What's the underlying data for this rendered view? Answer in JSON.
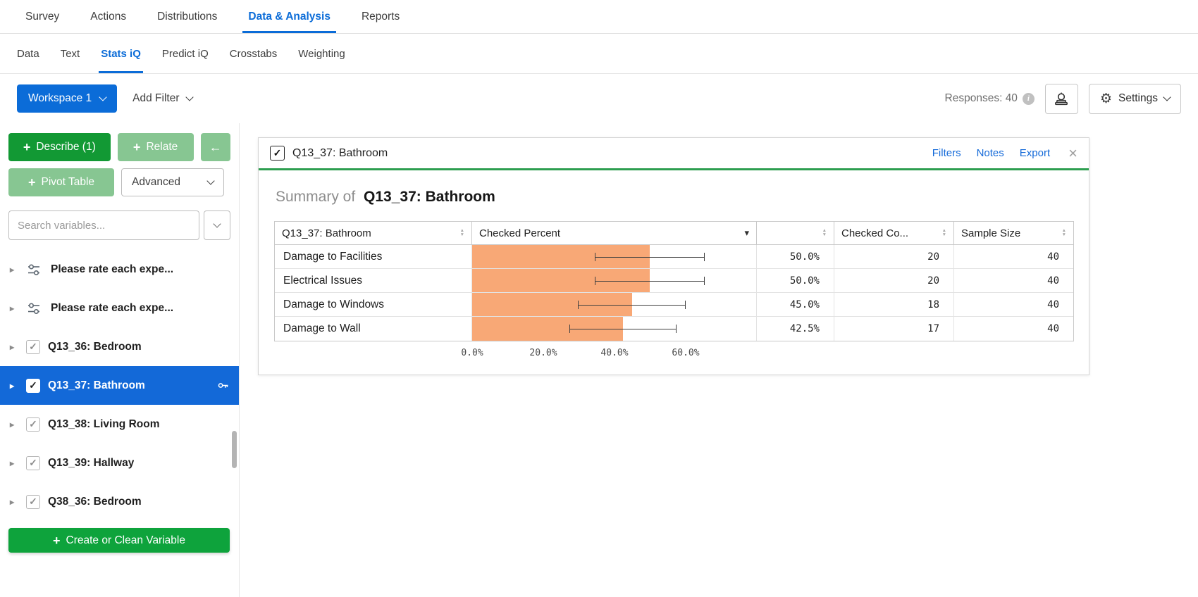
{
  "colors": {
    "accent_blue": "#0b6cd8",
    "selected_blue": "#1369d8",
    "green_dark": "#129934",
    "green_muted": "#87c692",
    "green_create": "#0ea33c",
    "card_accent_green": "#2d9e4f"
  },
  "top_nav": {
    "items": [
      "Survey",
      "Actions",
      "Distributions",
      "Data & Analysis",
      "Reports"
    ],
    "active": "Data & Analysis"
  },
  "sub_nav": {
    "items": [
      "Data",
      "Text",
      "Stats iQ",
      "Predict iQ",
      "Crosstabs",
      "Weighting"
    ],
    "active": "Stats iQ"
  },
  "toolbar": {
    "workspace_label": "Workspace 1",
    "add_filter_label": "Add Filter",
    "responses_label": "Responses: 40",
    "settings_label": "Settings"
  },
  "sidebar": {
    "describe_label": "Describe (1)",
    "relate_label": "Relate",
    "back_arrow": "←",
    "pivot_label": "Pivot Table",
    "advanced_label": "Advanced",
    "search_placeholder": "Search variables...",
    "create_label": "Create or Clean Variable",
    "variables": [
      {
        "label": "Please rate each expe...",
        "kind": "group",
        "checked": false,
        "selected": false
      },
      {
        "label": "Please rate each expe...",
        "kind": "group",
        "checked": false,
        "selected": false
      },
      {
        "label": "Q13_36: Bedroom",
        "kind": "question",
        "checked": true,
        "selected": false
      },
      {
        "label": "Q13_37: Bathroom",
        "kind": "question",
        "checked": true,
        "selected": true,
        "key_icon": true
      },
      {
        "label": "Q13_38: Living Room",
        "kind": "question",
        "checked": true,
        "selected": false
      },
      {
        "label": "Q13_39: Hallway",
        "kind": "question",
        "checked": true,
        "selected": false
      },
      {
        "label": "Q38_36: Bedroom",
        "kind": "question",
        "checked": true,
        "selected": false
      }
    ]
  },
  "card": {
    "header_title": "Q13_37: Bathroom",
    "links": [
      "Filters",
      "Notes",
      "Export"
    ],
    "summary_prefix": "Summary of",
    "summary_title": "Q13_37: Bathroom"
  },
  "chart_data": {
    "type": "bar",
    "orientation": "horizontal",
    "title": "Summary of Q13_37: Bathroom",
    "columns": [
      {
        "label": "Q13_37: Bathroom",
        "sortable": true
      },
      {
        "label": "Checked Percent",
        "sortable": false,
        "dropdown": true
      },
      {
        "label": "",
        "sortable": true
      },
      {
        "label": "Checked Co...",
        "sortable": true
      },
      {
        "label": "Sample Size",
        "sortable": true
      }
    ],
    "rows": [
      {
        "category": "Damage to Facilities",
        "percent": 50.0,
        "percent_label": "50.0%",
        "ci_low": 34.5,
        "ci_high": 65.5,
        "checked_count": 20,
        "sample_size": 40
      },
      {
        "category": "Electrical Issues",
        "percent": 50.0,
        "percent_label": "50.0%",
        "ci_low": 34.5,
        "ci_high": 65.5,
        "checked_count": 20,
        "sample_size": 40
      },
      {
        "category": "Damage to Windows",
        "percent": 45.0,
        "percent_label": "45.0%",
        "ci_low": 29.8,
        "ci_high": 60.2,
        "checked_count": 18,
        "sample_size": 40
      },
      {
        "category": "Damage to Wall",
        "percent": 42.5,
        "percent_label": "42.5%",
        "ci_low": 27.4,
        "ci_high": 57.6,
        "checked_count": 17,
        "sample_size": 40
      }
    ],
    "x_ticks": [
      {
        "value": 0,
        "label": "0.0%"
      },
      {
        "value": 20,
        "label": "20.0%"
      },
      {
        "value": 40,
        "label": "40.0%"
      },
      {
        "value": 60,
        "label": "60.0%"
      }
    ],
    "x_max": 80,
    "bar_color": "#f8a876",
    "grid": false,
    "legend": null
  }
}
